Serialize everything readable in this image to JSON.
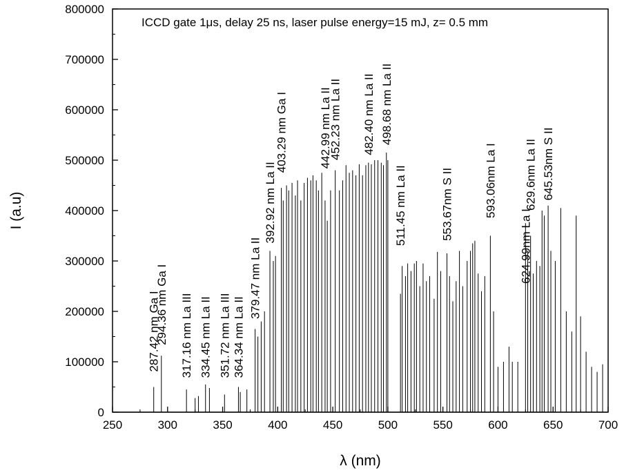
{
  "chart_data": {
    "type": "line",
    "title": "",
    "annotation": "ICCD gate 1μs, delay 25 ns, laser pulse energy=15 mJ, z= 0.5 mm",
    "xlabel": "λ (nm)",
    "ylabel": "I (a.u)",
    "xlim": [
      250,
      700
    ],
    "ylim": [
      0,
      800000
    ],
    "x_ticks": [
      250,
      300,
      350,
      400,
      450,
      500,
      550,
      600,
      650,
      700
    ],
    "y_ticks": [
      0,
      100000,
      200000,
      300000,
      400000,
      500000,
      600000,
      700000,
      800000
    ],
    "x_tick_labels": [
      "250",
      "300",
      "350",
      "400",
      "450",
      "500",
      "550",
      "600",
      "650",
      "700"
    ],
    "y_tick_labels": [
      "0",
      "100000",
      "200000",
      "300000",
      "400000",
      "500000",
      "600000",
      "700000",
      "800000"
    ],
    "grid": false,
    "series_color": "#000000",
    "series": [
      {
        "x": [
          287.42,
          294.36,
          317.16,
          325,
          328,
          334.45,
          338,
          351.72,
          364.34,
          366,
          372,
          379.47,
          382,
          385,
          388,
          392.92,
          396,
          398,
          403.29,
          405,
          408,
          410,
          413,
          416,
          418,
          421,
          424,
          427,
          430,
          432,
          435,
          437,
          440,
          442.99,
          445,
          448,
          452.23,
          456,
          459,
          462,
          465,
          468,
          471,
          474,
          477,
          480,
          482.4,
          485,
          488,
          491,
          494,
          496,
          498.68,
          500,
          511.45,
          513,
          516,
          518,
          521,
          524,
          526,
          529,
          532,
          535,
          538,
          542,
          545,
          548,
          553.67,
          556,
          559,
          562,
          565,
          568,
          572,
          575,
          577,
          579,
          582,
          585,
          588,
          593.06,
          596,
          600,
          605,
          610,
          613,
          618,
          624.99,
          627,
          629.6,
          632,
          635,
          638,
          640,
          642,
          645.53,
          648,
          652,
          657,
          662,
          667,
          671,
          675,
          680,
          685,
          690,
          695
        ],
        "y": [
          50000,
          112000,
          45000,
          28000,
          32000,
          55000,
          48000,
          35000,
          50000,
          40000,
          45000,
          165000,
          150000,
          180000,
          200000,
          320000,
          300000,
          310000,
          445000,
          420000,
          450000,
          440000,
          455000,
          430000,
          460000,
          420000,
          455000,
          465000,
          460000,
          470000,
          460000,
          440000,
          475000,
          420000,
          380000,
          440000,
          480000,
          440000,
          460000,
          490000,
          475000,
          480000,
          470000,
          492000,
          470000,
          490000,
          495000,
          492000,
          500000,
          500000,
          495000,
          490000,
          515000,
          500000,
          235000,
          290000,
          270000,
          295000,
          280000,
          295000,
          300000,
          250000,
          295000,
          260000,
          270000,
          225000,
          318000,
          280000,
          315000,
          270000,
          220000,
          260000,
          320000,
          250000,
          300000,
          320000,
          335000,
          340000,
          275000,
          240000,
          270000,
          350000,
          200000,
          90000,
          100000,
          130000,
          100000,
          100000,
          375000,
          320000,
          350000,
          275000,
          300000,
          290000,
          400000,
          390000,
          410000,
          320000,
          300000,
          405000,
          200000,
          160000,
          390000,
          190000,
          120000,
          90000,
          80000,
          95000
        ]
      }
    ],
    "peak_labels": [
      {
        "text": "287.42 nm Ga I",
        "x": 287.42,
        "y": 80000
      },
      {
        "text": "294.36 nm Ga I",
        "x": 294.36,
        "y": 133000
      },
      {
        "text": "317.16 nm La III",
        "x": 317.16,
        "y": 68000
      },
      {
        "text": "334.45 nm La II",
        "x": 334.45,
        "y": 68000
      },
      {
        "text": "351.72 nm La III",
        "x": 351.72,
        "y": 68000
      },
      {
        "text": "364.34 nm La II",
        "x": 364.34,
        "y": 68000
      },
      {
        "text": "379.47 nm La II",
        "x": 379.47,
        "y": 185000
      },
      {
        "text": "392.92 nm La II",
        "x": 392.92,
        "y": 335000
      },
      {
        "text": "403.29 nm Ga I",
        "x": 403.29,
        "y": 475000
      },
      {
        "text": "442.99 nm La II",
        "x": 442.99,
        "y": 483000
      },
      {
        "text": "452.23 nm La II",
        "x": 452.23,
        "y": 500000
      },
      {
        "text": "482.40 nm La II",
        "x": 482.4,
        "y": 510000
      },
      {
        "text": "498.68 nm La II",
        "x": 498.68,
        "y": 530000
      },
      {
        "text": "511.45 nm La II",
        "x": 511.45,
        "y": 330000
      },
      {
        "text": "553.67nm S II",
        "x": 553.67,
        "y": 340000
      },
      {
        "text": "593.06nm La I",
        "x": 593.06,
        "y": 385000
      },
      {
        "text": "624.99nm La I",
        "x": 624.99,
        "y": 255000
      },
      {
        "text": "629.6nm La II",
        "x": 629.6,
        "y": 400000
      },
      {
        "text": "645.53nm S II",
        "x": 645.53,
        "y": 420000
      }
    ]
  }
}
